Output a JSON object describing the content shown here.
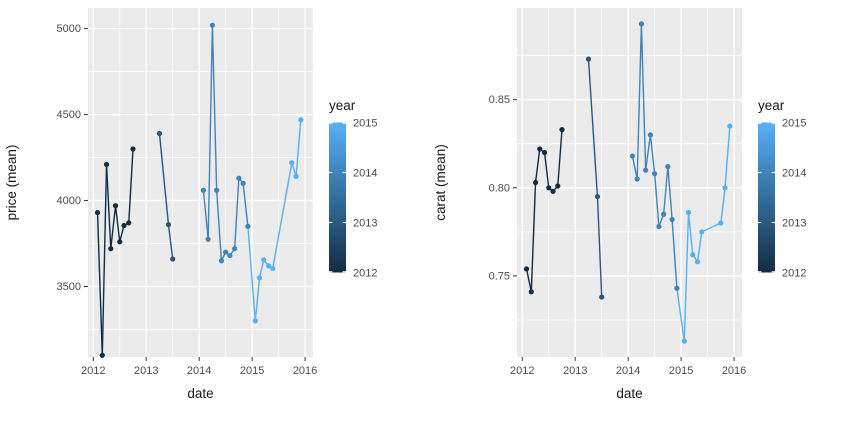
{
  "app": {
    "background": "#FFFFFF",
    "description": "Two ggplot-style line-point charts of mean price and mean carat by date, colored by year"
  },
  "palette": {
    "panel_bg": "#EBEBEB",
    "grid_color": "#FFFFFF",
    "axis_tick_color": "#333333",
    "tick_label_color": "#4D4D4D",
    "axis_title_color": "#1A1A1A",
    "gradient_low": "#132B43",
    "gradient_high": "#56B1F7",
    "year_colors": {
      "2012": "#132B43",
      "2013": "#29587F",
      "2014": "#4084BB",
      "2015": "#56B1F7"
    }
  },
  "chart_data": [
    {
      "name": "price-chart",
      "type": "line",
      "title": "",
      "xlabel": "date",
      "ylabel": "price (mean)",
      "xlim": [
        2011.9,
        2016.15
      ],
      "ylim": [
        3090,
        5120
      ],
      "xticks": [
        2012,
        2013,
        2014,
        2015,
        2016
      ],
      "xtick_labels": [
        "2012",
        "2013",
        "2014",
        "2015",
        "2016"
      ],
      "yticks": [
        3500,
        4000,
        4500,
        5000
      ],
      "ytick_labels": [
        "3500",
        "4000",
        "4500",
        "5000"
      ],
      "x_minor": [
        2012.5,
        2013.5,
        2014.5,
        2015.5
      ],
      "y_minor": [
        3250,
        3750,
        4250,
        4750
      ],
      "grid": "on",
      "legend": {
        "title": "year",
        "position": "right",
        "breaks": [
          2015,
          2014,
          2013,
          2012
        ],
        "domain_low": 2012,
        "domain_high": 2015
      },
      "series": [
        {
          "name": "2012 run",
          "points": [
            [
              2012.08,
              3930
            ],
            [
              2012.17,
              3100
            ],
            [
              2012.25,
              4210
            ],
            [
              2012.33,
              3720
            ],
            [
              2012.42,
              3970
            ],
            [
              2012.5,
              3760
            ],
            [
              2012.58,
              3855
            ],
            [
              2012.67,
              3870
            ],
            [
              2012.75,
              4300
            ]
          ]
        },
        {
          "name": "2013 run",
          "points": [
            [
              2013.25,
              4390
            ],
            [
              2013.42,
              3860
            ],
            [
              2013.5,
              3660
            ]
          ]
        },
        {
          "name": "2014-2015 run",
          "points": [
            [
              2014.08,
              4060
            ],
            [
              2014.17,
              3775
            ],
            [
              2014.25,
              5020
            ],
            [
              2014.33,
              4060
            ],
            [
              2014.42,
              3650
            ],
            [
              2014.5,
              3700
            ],
            [
              2014.58,
              3680
            ],
            [
              2014.67,
              3720
            ],
            [
              2014.75,
              4130
            ],
            [
              2014.83,
              4100
            ],
            [
              2014.92,
              3850
            ],
            [
              2015.06,
              3300
            ],
            [
              2015.14,
              3550
            ],
            [
              2015.22,
              3655
            ],
            [
              2015.31,
              3620
            ],
            [
              2015.39,
              3605
            ],
            [
              2015.75,
              4220
            ],
            [
              2015.83,
              4140
            ],
            [
              2015.92,
              4470
            ]
          ]
        }
      ]
    },
    {
      "name": "carat-chart",
      "type": "line",
      "title": "",
      "xlabel": "date",
      "ylabel": "carat (mean)",
      "xlim": [
        2011.9,
        2016.15
      ],
      "ylim": [
        0.704,
        0.902
      ],
      "xticks": [
        2012,
        2013,
        2014,
        2015,
        2016
      ],
      "xtick_labels": [
        "2012",
        "2013",
        "2014",
        "2015",
        "2016"
      ],
      "yticks": [
        0.75,
        0.8,
        0.85
      ],
      "ytick_labels": [
        "0.75",
        "0.80",
        "0.85"
      ],
      "x_minor": [
        2012.5,
        2013.5,
        2014.5,
        2015.5
      ],
      "y_minor": [
        0.725,
        0.775,
        0.825,
        0.875
      ],
      "grid": "on",
      "legend": {
        "title": "year",
        "position": "right",
        "breaks": [
          2015,
          2014,
          2013,
          2012
        ],
        "domain_low": 2012,
        "domain_high": 2015
      },
      "series": [
        {
          "name": "2012 run",
          "points": [
            [
              2012.08,
              0.754
            ],
            [
              2012.17,
              0.741
            ],
            [
              2012.25,
              0.803
            ],
            [
              2012.33,
              0.822
            ],
            [
              2012.42,
              0.82
            ],
            [
              2012.5,
              0.8
            ],
            [
              2012.58,
              0.798
            ],
            [
              2012.67,
              0.801
            ],
            [
              2012.75,
              0.833
            ]
          ]
        },
        {
          "name": "2013 run",
          "points": [
            [
              2013.25,
              0.873
            ],
            [
              2013.42,
              0.795
            ],
            [
              2013.5,
              0.738
            ]
          ]
        },
        {
          "name": "2014-2015 run",
          "points": [
            [
              2014.08,
              0.818
            ],
            [
              2014.17,
              0.805
            ],
            [
              2014.25,
              0.893
            ],
            [
              2014.33,
              0.81
            ],
            [
              2014.42,
              0.83
            ],
            [
              2014.5,
              0.808
            ],
            [
              2014.58,
              0.778
            ],
            [
              2014.67,
              0.785
            ],
            [
              2014.75,
              0.812
            ],
            [
              2014.83,
              0.782
            ],
            [
              2014.92,
              0.743
            ],
            [
              2015.06,
              0.713
            ],
            [
              2015.14,
              0.786
            ],
            [
              2015.22,
              0.762
            ],
            [
              2015.31,
              0.758
            ],
            [
              2015.39,
              0.775
            ],
            [
              2015.75,
              0.78
            ],
            [
              2015.83,
              0.8
            ],
            [
              2015.92,
              0.835
            ]
          ]
        }
      ]
    }
  ]
}
